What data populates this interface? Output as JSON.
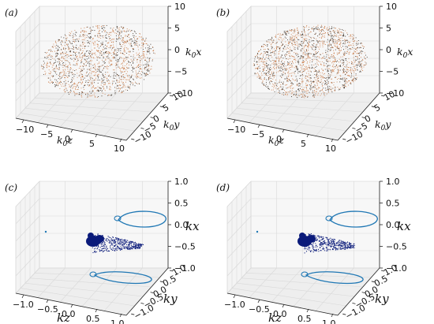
{
  "chart_data": [
    {
      "type": "scatter",
      "subtype": "3d",
      "panel_label": "(a)",
      "point_colors": [
        "#c8733c",
        "#2e2218"
      ],
      "axes": {
        "x": {
          "label": "k0z",
          "label_main": "k",
          "label_sub": "0",
          "label_var": "z",
          "lim": [
            -10,
            10
          ],
          "ticks": [
            "−10",
            "−5",
            "0",
            "5",
            "10"
          ]
        },
        "y": {
          "label": "k0y",
          "label_main": "k",
          "label_sub": "0",
          "label_var": "y",
          "lim": [
            -10,
            10
          ],
          "ticks": [
            "10",
            "5",
            "0",
            "−5",
            "−10"
          ]
        },
        "z": {
          "label": "k0x",
          "label_main": "k",
          "label_sub": "0",
          "label_var": "x",
          "lim": [
            -10,
            10
          ],
          "ticks": [
            "10",
            "5",
            "0",
            "−5",
            "−10"
          ]
        }
      },
      "grid": true,
      "description_of_data": "dense point cloud, ellipsoidal, spanning roughly z in [-9, 9], y in [-8, 8], x in [-8, 8], with banded structure"
    },
    {
      "type": "scatter",
      "subtype": "3d",
      "panel_label": "(b)",
      "point_colors": [
        "#c8733c",
        "#2e2218"
      ],
      "axes": {
        "x": {
          "label": "k0z",
          "label_main": "k",
          "label_sub": "0",
          "label_var": "z",
          "lim": [
            -10,
            10
          ],
          "ticks": [
            "−10",
            "−5",
            "0",
            "5",
            "10"
          ]
        },
        "y": {
          "label": "k0y",
          "label_main": "k",
          "label_sub": "0",
          "label_var": "y",
          "lim": [
            -10,
            10
          ],
          "ticks": [
            "10",
            "5",
            "0",
            "−5",
            "−10"
          ]
        },
        "z": {
          "label": "k0x",
          "label_main": "k",
          "label_sub": "0",
          "label_var": "x",
          "lim": [
            -10,
            10
          ],
          "ticks": [
            "10",
            "5",
            "0",
            "−5",
            "−10"
          ]
        }
      },
      "grid": true
    },
    {
      "type": "scatter",
      "subtype": "3d",
      "panel_label": "(c)",
      "point_colors": [
        "#0a1a7a",
        "#1f77b4"
      ],
      "axes": {
        "x": {
          "label": "kz",
          "label_main": "k",
          "label_sub": "",
          "label_var": "z",
          "lim": [
            -1,
            1
          ],
          "ticks": [
            "−1.0",
            "−0.5",
            "0.0",
            "0.5",
            "1.0"
          ]
        },
        "y": {
          "label": "ky",
          "label_main": "k",
          "label_sub": "",
          "label_var": "y",
          "lim": [
            -1,
            1
          ],
          "ticks": [
            "1.0",
            "0.5",
            "0.0",
            "−0.5",
            "−1.0"
          ]
        },
        "z": {
          "label": "kx",
          "label_main": "k",
          "label_sub": "",
          "label_var": "x",
          "lim": [
            -1,
            1
          ],
          "ticks": [
            "1.0",
            "0.5",
            "0.0",
            "−0.5",
            "−1.0"
          ]
        }
      },
      "grid": true
    },
    {
      "type": "scatter",
      "subtype": "3d",
      "panel_label": "(d)",
      "point_colors": [
        "#0a1a7a",
        "#1f77b4"
      ],
      "axes": {
        "x": {
          "label": "kz",
          "label_main": "k",
          "label_sub": "",
          "label_var": "z",
          "lim": [
            -1,
            1
          ],
          "ticks": [
            "−1.0",
            "−0.5",
            "0.0",
            "0.5",
            "1.0"
          ]
        },
        "y": {
          "label": "ky",
          "label_main": "k",
          "label_sub": "",
          "label_var": "y",
          "lim": [
            -1,
            1
          ],
          "ticks": [
            "1.0",
            "0.5",
            "0.0",
            "−0.5",
            "−1.0"
          ]
        },
        "z": {
          "label": "kx",
          "label_main": "k",
          "label_sub": "",
          "label_var": "x",
          "lim": [
            -1,
            1
          ],
          "ticks": [
            "1.0",
            "0.5",
            "0.0",
            "−0.5",
            "−1.0"
          ]
        }
      },
      "grid": true
    }
  ]
}
